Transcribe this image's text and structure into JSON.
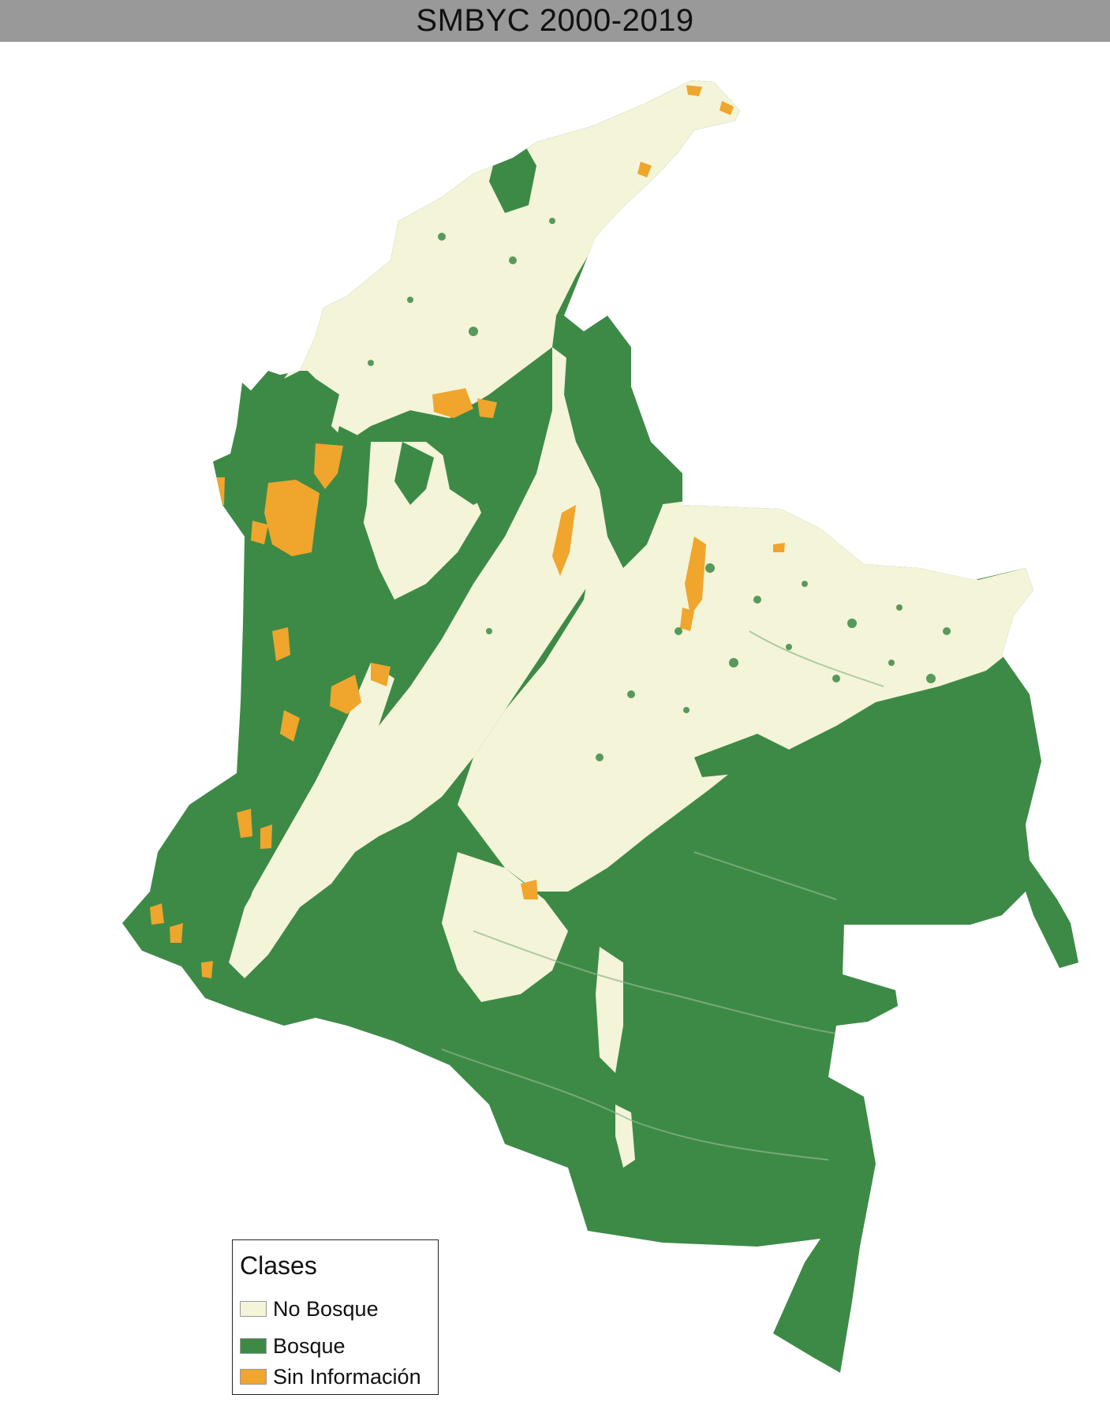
{
  "title": "SMBYC 2000-2019",
  "colors": {
    "title_bar": "#999999",
    "no_bosque": "#F4F4D8",
    "bosque": "#3D8A46",
    "sin_informacion": "#F0A52C"
  },
  "legend": {
    "title": "Clases",
    "items": [
      {
        "label": "No Bosque",
        "color": "#F4F4D8"
      },
      {
        "label": "Bosque",
        "color": "#3D8A46"
      },
      {
        "label": "Sin Información",
        "color": "#F0A52C"
      }
    ]
  }
}
